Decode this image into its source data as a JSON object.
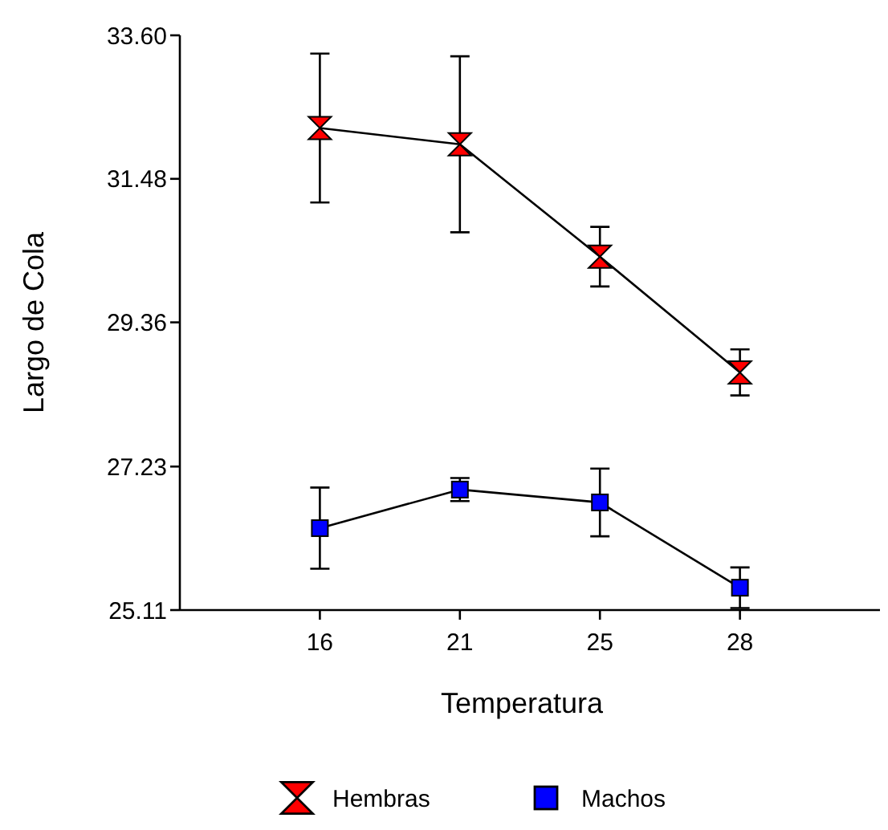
{
  "chart_data": {
    "type": "line",
    "xlabel": "Temperatura",
    "ylabel": "Largo de Cola",
    "categories": [
      "16",
      "21",
      "25",
      "28"
    ],
    "series": [
      {
        "name": "Hembras",
        "color": "#000000",
        "marker": "diamond",
        "colors": [
          "#ff0000",
          "#ff0000",
          "#ff0000",
          "#ff0000"
        ],
        "values": [
          32.23,
          31.99,
          30.33,
          28.62
        ],
        "errors": [
          1.1,
          1.3,
          0.44,
          0.34
        ]
      },
      {
        "name": "Machos",
        "color": "#000000",
        "colors": [
          "#0000ff",
          "#0000ff",
          "#0000ff",
          "#0000ff"
        ],
        "marker": "square",
        "values": [
          26.32,
          26.89,
          26.7,
          25.44
        ],
        "errors": [
          0.6,
          0.17,
          0.5,
          0.3
        ]
      }
    ],
    "ylim": [
      25.11,
      33.6
    ],
    "yticks": [
      25.11,
      27.23,
      29.36,
      31.48,
      {
        "value": 33.6,
        "label": "33.60"
      }
    ],
    "grid": false,
    "legend": "bottom"
  }
}
